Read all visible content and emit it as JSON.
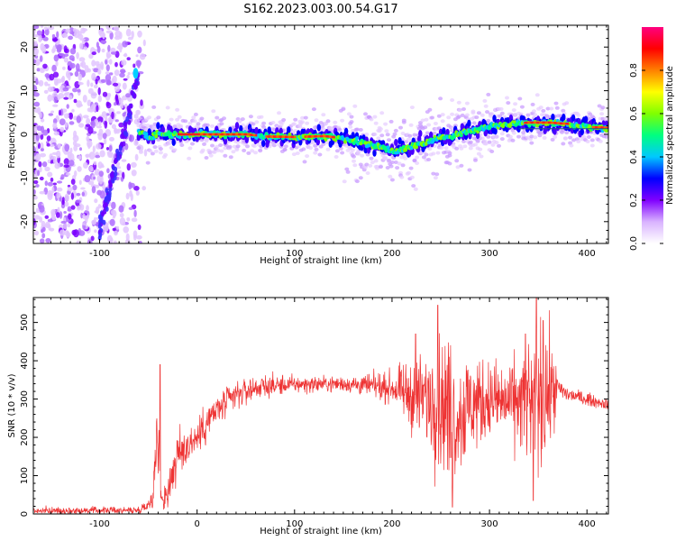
{
  "title": "S162.2023.003.00.54.G17",
  "chart_data": [
    {
      "type": "heatmap",
      "xlabel": "Height of straight line (km)",
      "ylabel": "Frequency (Hz)",
      "xlim": [
        -168,
        422
      ],
      "ylim": [
        -25,
        25
      ],
      "xticks": [
        -100,
        0,
        100,
        200,
        300,
        400
      ],
      "yticks": [
        -20,
        -10,
        0,
        10,
        20
      ],
      "colorbar": {
        "label": "Normalized spectral amplitude",
        "range": [
          0.0,
          1.0
        ],
        "ticks": [
          0.0,
          0.2,
          0.4,
          0.6,
          0.8
        ],
        "colormap": [
          "#ffffff",
          "#d9b3ff",
          "#8000ff",
          "#0000ff",
          "#00c8ff",
          "#00ff80",
          "#80ff00",
          "#ffff00",
          "#ff8000",
          "#ff0000",
          "#ff0080"
        ]
      },
      "ridge": {
        "x": [
          -60,
          -55,
          -50,
          -40,
          -30,
          -20,
          0,
          20,
          50,
          70,
          100,
          130,
          150,
          170,
          190,
          200,
          210,
          220,
          240,
          260,
          280,
          300,
          320,
          340,
          360,
          380,
          400,
          420
        ],
        "y": [
          0.5,
          0.3,
          -0.8,
          0.2,
          0.0,
          0.0,
          0.0,
          0.0,
          0.0,
          -0.5,
          -0.6,
          -0.4,
          -0.9,
          -2.0,
          -3.0,
          -3.8,
          -3.6,
          -2.8,
          -1.5,
          -0.3,
          0.8,
          1.8,
          2.4,
          2.7,
          2.7,
          2.4,
          1.7,
          1.5
        ]
      },
      "noise_region_km": [
        -168,
        -60
      ],
      "reference_line": {
        "x": [
          330,
          422
        ],
        "y": [
          1.3,
          1.3
        ]
      }
    },
    {
      "type": "line",
      "xlabel": "Height of straight line (km)",
      "ylabel": "SNR (10 * v/v)",
      "xlim": [
        -168,
        422
      ],
      "ylim": [
        0,
        565
      ],
      "xticks": [
        -100,
        0,
        100,
        200,
        300,
        400
      ],
      "yticks": [
        0,
        100,
        200,
        300,
        400,
        500
      ],
      "series": [
        {
          "color": "#ee3333",
          "envelope": {
            "x": [
              -168,
              -60,
              -50,
              -45,
              -42,
              -39,
              -37,
              -34,
              -30,
              -25,
              -20,
              -10,
              0,
              10,
              20,
              40,
              60,
              80,
              100,
              150,
              200,
              220,
              240,
              255,
              265,
              280,
              300,
              320,
              340,
              355,
              365,
              370,
              380,
              400,
              422
            ],
            "mean": [
              8,
              10,
              25,
              50,
              190,
              160,
              45,
              40,
              60,
              110,
              150,
              180,
              200,
              240,
              270,
              310,
              330,
              335,
              338,
              340,
              330,
              310,
              300,
              280,
              250,
              285,
              300,
              290,
              290,
              310,
              320,
              330,
              312,
              300,
              285
            ],
            "spread": [
              8,
              8,
              15,
              30,
              90,
              60,
              25,
              30,
              50,
              60,
              60,
              50,
              45,
              45,
              40,
              35,
              28,
              25,
              20,
              18,
              35,
              80,
              120,
              170,
              150,
              120,
              90,
              90,
              140,
              170,
              110,
              25,
              18,
              15,
              12
            ],
            "peaks": [
              {
                "x": -38,
                "y": 390
              },
              {
                "x": 224,
                "y": 470
              },
              {
                "x": 247,
                "y": 545
              },
              {
                "x": 262,
                "y": 515
              },
              {
                "x": 337,
                "y": 470
              },
              {
                "x": 348,
                "y": 563
              },
              {
                "x": 355,
                "y": 505
              },
              {
                "x": 262,
                "y": 18
              },
              {
                "x": 345,
                "y": 35
              }
            ]
          }
        }
      ]
    }
  ]
}
